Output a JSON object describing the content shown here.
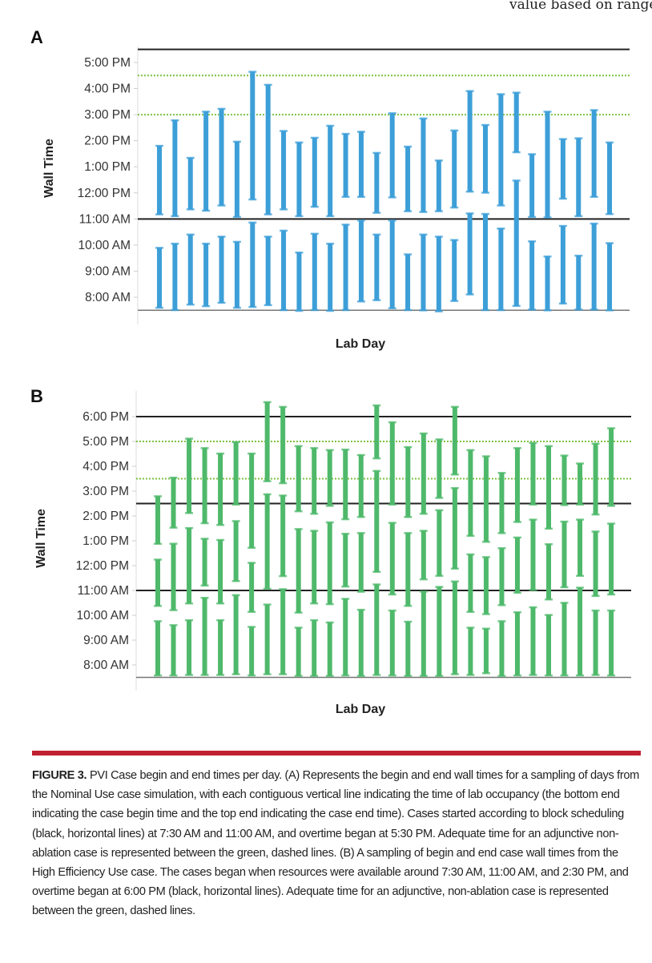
{
  "header": {
    "running_text": "value based on range"
  },
  "figure": {
    "label": "FIGURE 3.",
    "caption": "PVI Case begin and end times per day. (A) Represents the begin and end wall times for a sampling of days from the Nominal Use case simulation, with each contiguous vertical line indicating the time of lab occupancy (the bottom end indicating the case begin time and the top end indicating the case end time). Cases started according to block scheduling (black, horizontal lines) at 7:30 AM and 11:00 AM, and overtime began at 5:30 PM. Adequate time for an adjunctive non-ablation case is represented between the green, dashed lines. (B) A sampling of begin and end case wall times from the High Efficiency Use case. The cases began when resources were available around 7:30 AM, 11:00 AM, and 2:30 PM, and overtime began at 6:00 PM (black, horizontal lines). Adequate time for an adjunctive, non-ablation case is represented between the green, dashed lines."
  },
  "colors": {
    "blue": "#3d9fd8",
    "green": "#4fb96b",
    "black_line": "#222222",
    "green_line": "#7cc242",
    "accent_red": "#c0202f"
  },
  "chart_data": [
    {
      "panel": "A",
      "type": "range-bar",
      "xlabel": "Lab Day",
      "ylabel": "Wall Time",
      "units": "hour of day (24h decimal)",
      "ylim": [
        7.5,
        17.5
      ],
      "yticks": [
        {
          "value": 17,
          "label": "5:00 PM"
        },
        {
          "value": 16,
          "label": "4:00 PM"
        },
        {
          "value": 15,
          "label": "3:00 PM"
        },
        {
          "value": 14,
          "label": "2:00 PM"
        },
        {
          "value": 13,
          "label": "1:00 PM"
        },
        {
          "value": 12,
          "label": "12:00 PM"
        },
        {
          "value": 11,
          "label": "11:00 AM"
        },
        {
          "value": 10,
          "label": "10:00 AM"
        },
        {
          "value": 9,
          "label": "9:00 AM"
        },
        {
          "value": 8,
          "label": "8:00 AM"
        }
      ],
      "reference_lines": [
        {
          "value": 17.5,
          "style": "black-solid"
        },
        {
          "value": 11,
          "style": "black-solid"
        },
        {
          "value": 16.5,
          "style": "green-dotted"
        },
        {
          "value": 15,
          "style": "green-dotted"
        }
      ],
      "days": [
        [
          [
            7.59,
            9.9
          ],
          [
            11.17,
            13.81
          ]
        ],
        [
          [
            7.5,
            10.06
          ],
          [
            11.1,
            14.79
          ]
        ],
        [
          [
            7.71,
            10.41
          ],
          [
            11.36,
            13.35
          ]
        ],
        [
          [
            7.65,
            10.06
          ],
          [
            11.31,
            15.12
          ]
        ],
        [
          [
            7.78,
            10.33
          ],
          [
            11.51,
            15.23
          ]
        ],
        [
          [
            7.59,
            10.13
          ],
          [
            11.07,
            13.97
          ]
        ],
        [
          [
            7.62,
            10.87
          ],
          [
            11.74,
            16.65
          ]
        ],
        [
          [
            7.69,
            10.33
          ],
          [
            11.17,
            16.15
          ]
        ],
        [
          [
            7.5,
            10.56
          ],
          [
            11.36,
            14.38
          ]
        ],
        [
          [
            7.47,
            9.72
          ],
          [
            11.1,
            13.94
          ]
        ],
        [
          [
            7.5,
            10.44
          ],
          [
            11.46,
            14.12
          ]
        ],
        [
          [
            7.47,
            10.06
          ],
          [
            11.1,
            14.58
          ]
        ],
        [
          [
            7.5,
            10.79
          ],
          [
            11.84,
            14.27
          ]
        ],
        [
          [
            7.83,
            10.95
          ],
          [
            11.84,
            14.35
          ]
        ],
        [
          [
            7.88,
            10.41
          ],
          [
            11.23,
            13.54
          ]
        ],
        [
          [
            7.57,
            10.95
          ],
          [
            11.82,
            15.06
          ]
        ],
        [
          [
            7.5,
            9.65
          ],
          [
            11.29,
            13.78
          ]
        ],
        [
          [
            7.49,
            10.41
          ],
          [
            11.26,
            14.86
          ]
        ],
        [
          [
            7.45,
            10.33
          ],
          [
            11.29,
            13.25
          ]
        ],
        [
          [
            7.85,
            10.2
          ],
          [
            11.43,
            14.4
          ]
        ],
        [
          [
            8.1,
            11.22
          ],
          [
            12.04,
            15.91
          ]
        ],
        [
          [
            7.5,
            11.2
          ],
          [
            12.0,
            14.61
          ]
        ],
        [
          [
            7.5,
            10.64
          ],
          [
            11.51,
            15.79
          ]
        ],
        [
          [
            7.66,
            12.48
          ],
          [
            13.55,
            15.85
          ]
        ],
        [
          [
            7.52,
            10.15
          ],
          [
            11.07,
            13.49
          ]
        ],
        [
          [
            7.49,
            9.57
          ],
          [
            11.05,
            15.12
          ]
        ],
        [
          [
            7.75,
            10.74
          ],
          [
            11.77,
            14.07
          ]
        ],
        [
          [
            7.52,
            9.6
          ],
          [
            11.1,
            14.1
          ]
        ],
        [
          [
            7.52,
            10.83
          ],
          [
            11.84,
            15.18
          ]
        ],
        [
          [
            7.49,
            10.08
          ],
          [
            11.18,
            13.94
          ]
        ]
      ]
    },
    {
      "panel": "B",
      "type": "range-bar",
      "xlabel": "Lab Day",
      "ylabel": "Wall Time",
      "units": "hour of day (24h decimal)",
      "ylim": [
        7.5,
        18.75
      ],
      "yticks": [
        {
          "value": 18,
          "label": "6:00 PM"
        },
        {
          "value": 17,
          "label": "5:00 PM"
        },
        {
          "value": 16,
          "label": "4:00 PM"
        },
        {
          "value": 15,
          "label": "3:00 PM"
        },
        {
          "value": 14,
          "label": "2:00 PM"
        },
        {
          "value": 13,
          "label": "1:00 PM"
        },
        {
          "value": 12,
          "label": "12:00 PM"
        },
        {
          "value": 11,
          "label": "11:00 AM"
        },
        {
          "value": 10,
          "label": "10:00 AM"
        },
        {
          "value": 9,
          "label": "9:00 AM"
        },
        {
          "value": 8,
          "label": "8:00 AM"
        }
      ],
      "reference_lines": [
        {
          "value": 18,
          "style": "black-solid"
        },
        {
          "value": 14.5,
          "style": "black-solid"
        },
        {
          "value": 11,
          "style": "black-solid"
        },
        {
          "value": 17,
          "style": "green-dotted"
        },
        {
          "value": 15.5,
          "style": "green-dotted"
        }
      ],
      "days": [
        [
          [
            7.57,
            9.77
          ],
          [
            10.37,
            12.25
          ],
          [
            12.87,
            14.8
          ]
        ],
        [
          [
            7.57,
            9.61
          ],
          [
            10.2,
            12.89
          ],
          [
            13.52,
            15.55
          ]
        ],
        [
          [
            7.59,
            9.81
          ],
          [
            10.47,
            13.52
          ],
          [
            14.11,
            17.12
          ]
        ],
        [
          [
            7.59,
            10.71
          ],
          [
            11.19,
            13.09
          ],
          [
            13.7,
            16.74
          ]
        ],
        [
          [
            7.59,
            9.81
          ],
          [
            10.47,
            13.04
          ],
          [
            13.63,
            16.52
          ]
        ],
        [
          [
            7.62,
            10.82
          ],
          [
            11.37,
            13.8
          ],
          [
            14.45,
            16.98
          ]
        ],
        [
          [
            7.57,
            9.54
          ],
          [
            10.13,
            12.12
          ],
          [
            12.71,
            16.52
          ]
        ],
        [
          [
            7.62,
            10.44
          ],
          [
            11.06,
            14.88
          ],
          [
            15.39,
            18.59
          ]
        ],
        [
          [
            7.62,
            11.06
          ],
          [
            11.57,
            14.83
          ],
          [
            15.31,
            18.4
          ]
        ],
        [
          [
            7.55,
            9.51
          ],
          [
            10.1,
            13.48
          ],
          [
            14.18,
            16.82
          ]
        ],
        [
          [
            7.55,
            9.81
          ],
          [
            10.47,
            13.41
          ],
          [
            14.08,
            16.74
          ]
        ],
        [
          [
            7.55,
            9.72
          ],
          [
            10.44,
            13.75
          ],
          [
            14.4,
            16.66
          ]
        ],
        [
          [
            7.57,
            10.67
          ],
          [
            11.15,
            13.29
          ],
          [
            13.86,
            16.68
          ]
        ],
        [
          [
            7.55,
            10.23
          ],
          [
            10.94,
            13.32
          ],
          [
            13.95,
            16.46
          ]
        ],
        [
          [
            7.59,
            11.25
          ],
          [
            11.74,
            15.82
          ],
          [
            16.31,
            18.46
          ]
        ],
        [
          [
            7.57,
            10.2
          ],
          [
            10.83,
            13.73
          ],
          [
            14.45,
            17.78
          ]
        ],
        [
          [
            7.55,
            9.75
          ],
          [
            10.37,
            13.32
          ],
          [
            13.95,
            16.78
          ]
        ],
        [
          [
            7.55,
            10.96
          ],
          [
            11.44,
            13.41
          ],
          [
            14.08,
            17.33
          ]
        ],
        [
          [
            7.55,
            11.15
          ],
          [
            11.58,
            14.24
          ],
          [
            14.72,
            17.09
          ]
        ],
        [
          [
            7.62,
            11.37
          ],
          [
            11.87,
            15.13
          ],
          [
            15.66,
            18.4
          ]
        ],
        [
          [
            7.59,
            9.51
          ],
          [
            10.13,
            12.46
          ],
          [
            13.19,
            16.66
          ]
        ],
        [
          [
            7.66,
            9.47
          ],
          [
            10.04,
            12.35
          ],
          [
            12.95,
            16.41
          ]
        ],
        [
          [
            7.55,
            9.77
          ],
          [
            10.4,
            12.71
          ],
          [
            13.3,
            15.74
          ]
        ],
        [
          [
            7.57,
            10.13
          ],
          [
            10.9,
            13.14
          ],
          [
            13.75,
            16.74
          ]
        ],
        [
          [
            7.59,
            10.33
          ],
          [
            11.01,
            13.86
          ],
          [
            14.45,
            16.95
          ]
        ],
        [
          [
            7.57,
            10.02
          ],
          [
            10.63,
            12.87
          ],
          [
            13.48,
            16.82
          ]
        ],
        [
          [
            7.57,
            10.51
          ],
          [
            11.12,
            13.78
          ],
          [
            14.43,
            16.44
          ]
        ],
        [
          [
            7.57,
            11.12
          ],
          [
            11.58,
            13.86
          ],
          [
            14.45,
            16.12
          ]
        ],
        [
          [
            7.59,
            10.2
          ],
          [
            10.77,
            13.38
          ],
          [
            14.05,
            16.92
          ]
        ],
        [
          [
            7.57,
            10.2
          ],
          [
            10.83,
            13.7
          ],
          [
            14.4,
            17.54
          ]
        ]
      ]
    }
  ]
}
